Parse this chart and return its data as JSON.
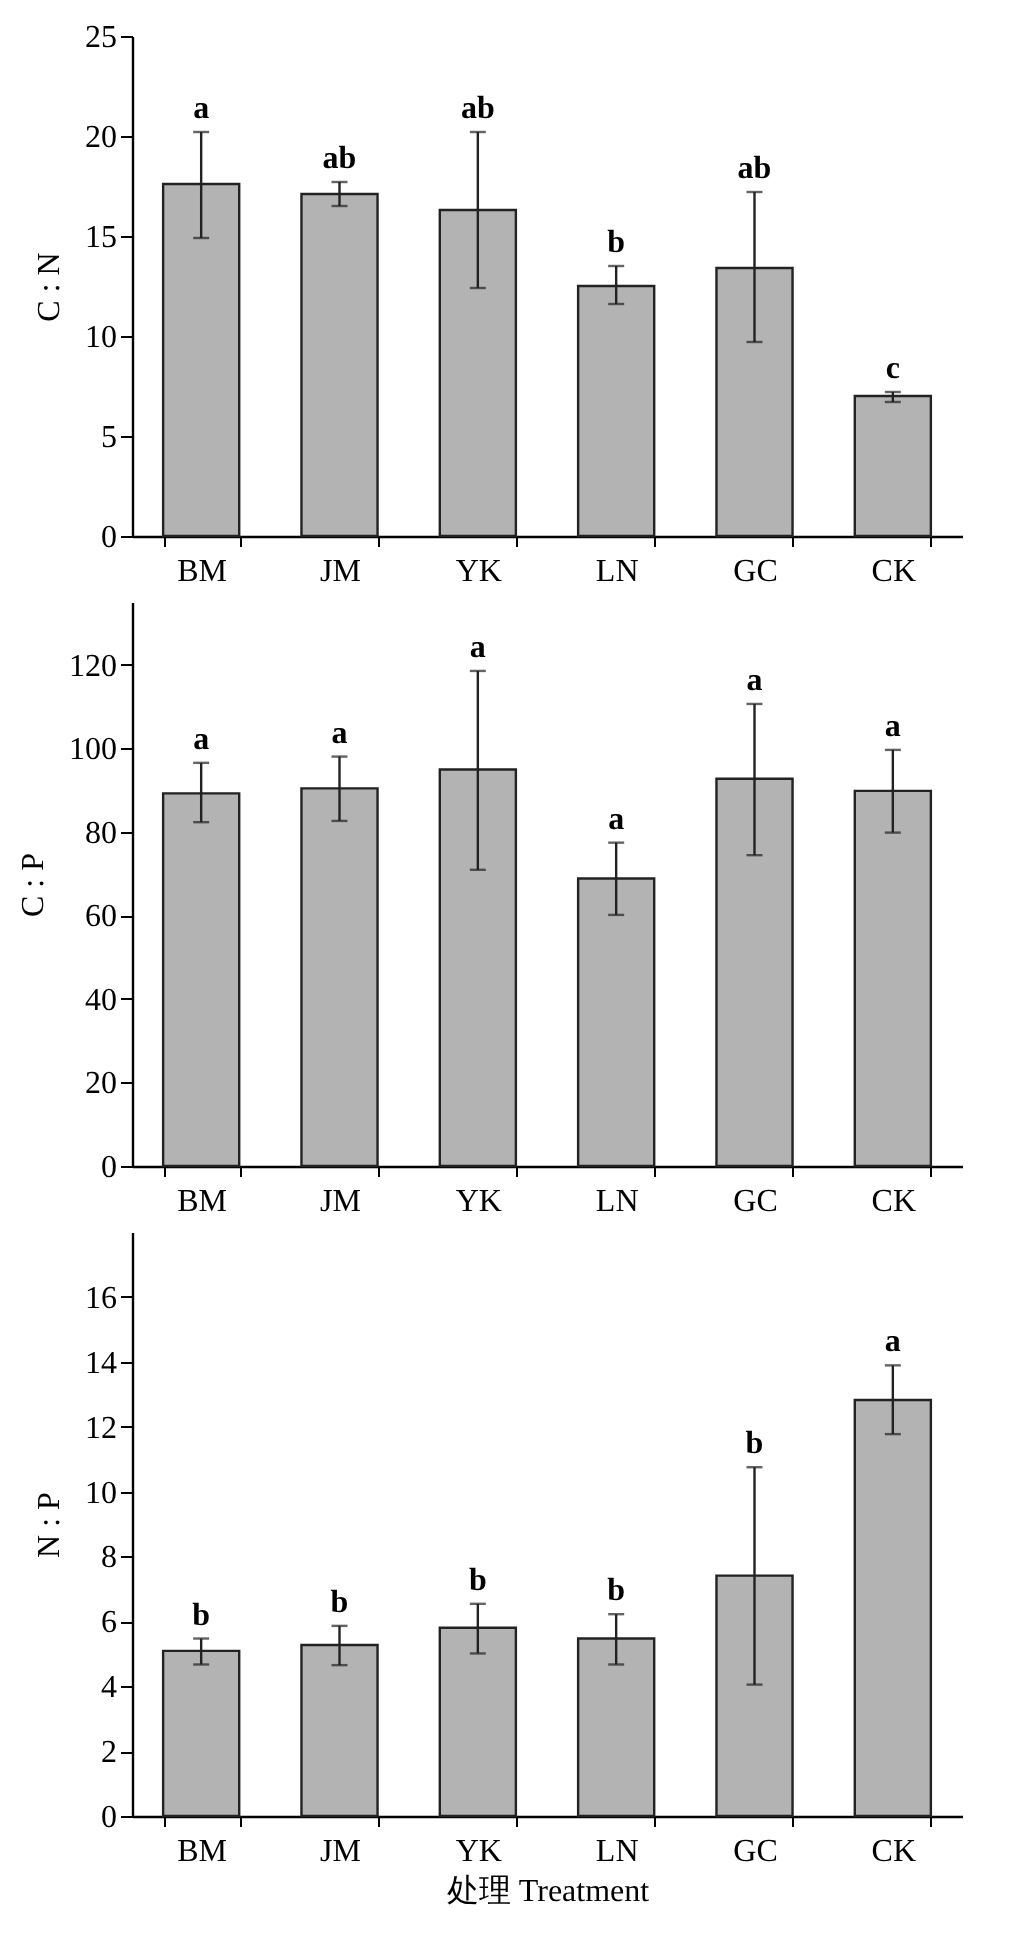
{
  "chart_data": [
    {
      "type": "bar",
      "categories": [
        "BM",
        "JM",
        "YK",
        "LN",
        "GC",
        "CK"
      ],
      "values": [
        17.6,
        17.1,
        16.3,
        12.5,
        13.4,
        7.0
      ],
      "errors": [
        [
          14.9,
          20.2
        ],
        [
          16.5,
          17.7
        ],
        [
          12.4,
          20.2
        ],
        [
          11.6,
          13.5
        ],
        [
          9.7,
          17.2
        ],
        [
          6.7,
          7.2
        ]
      ],
      "color": "#b3b3b3",
      "ylabel": "C : N",
      "ylim": [
        0,
        25
      ],
      "yticks": [
        0,
        5,
        10,
        15,
        20,
        25
      ],
      "annotations": [
        {
          "text": "a",
          "x": "BM",
          "y": 20.2
        },
        {
          "text": "ab",
          "x": "JM",
          "y": 17.7
        },
        {
          "text": "ab",
          "x": "YK",
          "y": 20.2
        },
        {
          "text": "b",
          "x": "LN",
          "y": 13.5
        },
        {
          "text": "ab",
          "x": "GC",
          "y": 17.2
        },
        {
          "text": "c",
          "x": "CK",
          "y": 7.2
        }
      ]
    },
    {
      "type": "bar",
      "categories": [
        "BM",
        "JM",
        "YK",
        "LN",
        "GC",
        "CK"
      ],
      "values": [
        89.2,
        90.4,
        94.9,
        68.8,
        92.7,
        89.8
      ],
      "errors": [
        [
          82.3,
          96.5
        ],
        [
          82.6,
          98.0
        ],
        [
          70.9,
          118.5
        ],
        [
          60.1,
          77.4
        ],
        [
          74.4,
          110.6
        ],
        [
          79.8,
          99.6
        ]
      ],
      "color": "#b3b3b3",
      "ylabel": "C : P",
      "ylim": [
        0,
        135
      ],
      "yticks": [
        0,
        20,
        40,
        60,
        80,
        100,
        120
      ],
      "annotations": [
        {
          "text": "a",
          "x": "BM",
          "y": 96.5
        },
        {
          "text": "a",
          "x": "JM",
          "y": 98.0
        },
        {
          "text": "a",
          "x": "YK",
          "y": 118.5
        },
        {
          "text": "a",
          "x": "LN",
          "y": 77.4
        },
        {
          "text": "a",
          "x": "GC",
          "y": 110.6
        },
        {
          "text": "a",
          "x": "CK",
          "y": 99.6
        }
      ]
    },
    {
      "type": "bar",
      "categories": [
        "BM",
        "JM",
        "YK",
        "LN",
        "GC",
        "CK"
      ],
      "values": [
        5.09,
        5.27,
        5.8,
        5.47,
        7.41,
        12.82
      ],
      "errors": [
        [
          4.67,
          5.47
        ],
        [
          4.65,
          5.86
        ],
        [
          5.01,
          6.54
        ],
        [
          4.67,
          6.22
        ],
        [
          4.05,
          10.75
        ],
        [
          11.77,
          13.89
        ]
      ],
      "color": "#b3b3b3",
      "xlabel": "处理 Treatment",
      "ylabel": "N : P",
      "ylim": [
        0,
        18
      ],
      "yticks": [
        0,
        2,
        4,
        6,
        8,
        10,
        12,
        14,
        16
      ],
      "annotations": [
        {
          "text": "b",
          "x": "BM",
          "y": 5.47
        },
        {
          "text": "b",
          "x": "JM",
          "y": 5.86
        },
        {
          "text": "b",
          "x": "YK",
          "y": 6.54
        },
        {
          "text": "b",
          "x": "LN",
          "y": 6.22
        },
        {
          "text": "b",
          "x": "GC",
          "y": 10.75
        },
        {
          "text": "a",
          "x": "CK",
          "y": 13.89
        }
      ]
    }
  ]
}
